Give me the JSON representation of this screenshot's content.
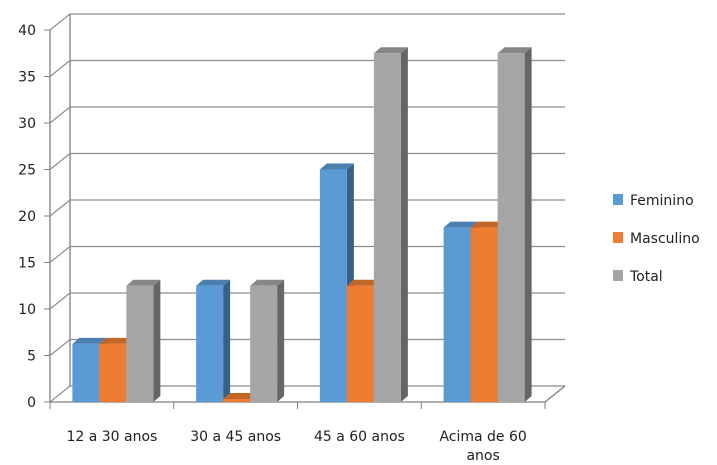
{
  "chart_data": {
    "type": "bar",
    "title": "",
    "xlabel": "",
    "ylabel": "",
    "ylim": [
      0,
      40
    ],
    "yticks": [
      0,
      5,
      10,
      15,
      20,
      25,
      30,
      35,
      40
    ],
    "grid": true,
    "legend_position": "right",
    "categories": [
      "12 a 30 anos",
      "30 a 45 anos",
      "45 a 60 anos",
      "Acima de 60 anos"
    ],
    "series": [
      {
        "name": "Feminino",
        "color": "#5B9BD5",
        "values": [
          6.25,
          12.5,
          25,
          18.75
        ]
      },
      {
        "name": "Masculino",
        "color": "#ED7D31",
        "values": [
          6.25,
          0,
          12.5,
          18.75
        ]
      },
      {
        "name": "Total",
        "color": "#A5A5A5",
        "values": [
          12.5,
          12.5,
          37.5,
          37.5
        ]
      }
    ]
  }
}
